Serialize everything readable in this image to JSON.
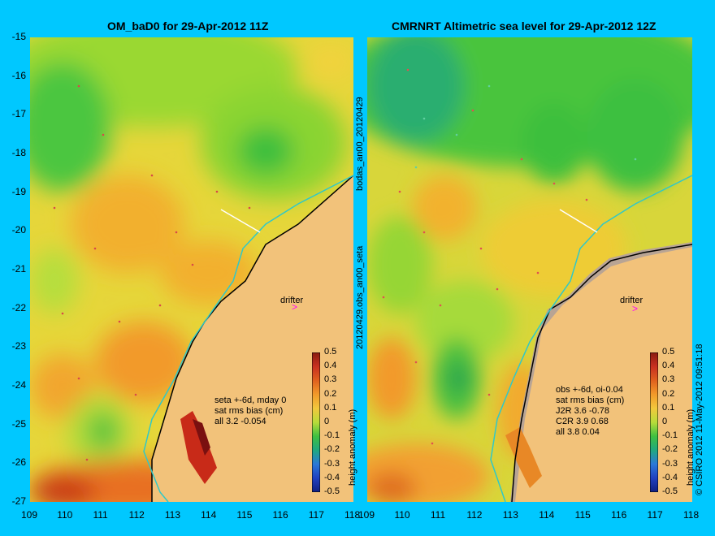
{
  "left_panel": {
    "title": "OM_baD0 for 29-Apr-2012 11Z",
    "drifter_label": "drifter",
    "stats": [
      "seta +-6d, mday 0",
      "sat rms bias (cm)",
      "all 3.2 -0.054"
    ],
    "side_label": "bodas_an00_20120429"
  },
  "right_panel": {
    "title": "CMRNRT Altimetric sea level  for 29-Apr-2012 12Z",
    "drifter_label": "drifter",
    "stats": [
      "obs +-6d, oi-0.04",
      "sat rms bias (cm)",
      "J2R   3.6 -0.78",
      "C2R   3.9 0.68",
      "all 3.8 0.04"
    ],
    "side_label": "20120429.obs_an00_seta"
  },
  "axes": {
    "x_ticks": [
      "109",
      "110",
      "111",
      "112",
      "113",
      "114",
      "115",
      "116",
      "117",
      "118"
    ],
    "y_ticks": [
      "-15",
      "-16",
      "-17",
      "-18",
      "-19",
      "-20",
      "-21",
      "-22",
      "-23",
      "-24",
      "-25",
      "-26",
      "-27"
    ],
    "x_range": [
      109,
      118
    ],
    "y_range": [
      -27,
      -15
    ]
  },
  "colorbar": {
    "label": "height anomaly (m)",
    "ticks": [
      "0.5",
      "0.4",
      "0.3",
      "0.2",
      "0.1",
      "0",
      "-0.1",
      "-0.2",
      "-0.3",
      "-0.4",
      "-0.5"
    ],
    "range": [
      -0.5,
      0.5
    ]
  },
  "credit": "© CSIRO 2012   11-May-2012 09:51:18",
  "colors": {
    "background": "#00c8ff",
    "land": "#f2c27a",
    "coast_track": "#30c8c8",
    "drifter_marker": "#ff00ff"
  }
}
